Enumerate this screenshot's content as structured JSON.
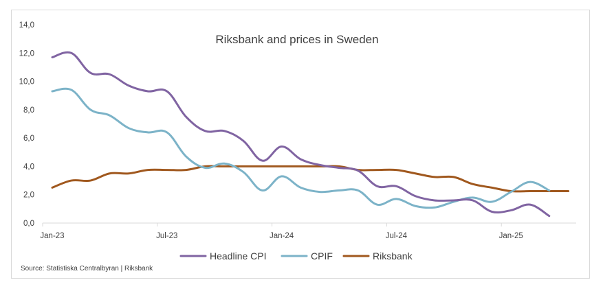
{
  "chart_data": {
    "type": "line",
    "title": "Riksbank and prices in Sweden",
    "source": "Source: Statistiska Centralbyran | Riksbank",
    "xlabel": "",
    "ylabel": "",
    "ylim": [
      0,
      14
    ],
    "yticks": [
      "0,0",
      "2,0",
      "4,0",
      "6,0",
      "8,0",
      "10,0",
      "12,0",
      "14,0"
    ],
    "xticks": [
      {
        "label": "Jan-23",
        "month": 0
      },
      {
        "label": "Jul-23",
        "month": 6
      },
      {
        "label": "Jan-24",
        "month": 12
      },
      {
        "label": "Jul-24",
        "month": 18
      },
      {
        "label": "Jan-25",
        "month": 24
      }
    ],
    "grid": false,
    "legend_position": "bottom",
    "series": [
      {
        "name": "Headline CPI",
        "color": "#8064a2",
        "x": [
          "2023-01",
          "2023-02",
          "2023-03",
          "2023-04",
          "2023-05",
          "2023-06",
          "2023-07",
          "2023-08",
          "2023-09",
          "2023-10",
          "2023-11",
          "2023-12",
          "2024-01",
          "2024-02",
          "2024-03",
          "2024-04",
          "2024-05",
          "2024-06",
          "2024-07",
          "2024-08",
          "2024-09",
          "2024-10",
          "2024-11",
          "2024-12",
          "2025-01",
          "2025-02",
          "2025-03"
        ],
        "values": [
          11.7,
          12.0,
          10.6,
          10.5,
          9.7,
          9.3,
          9.3,
          7.5,
          6.5,
          6.5,
          5.8,
          4.4,
          5.4,
          4.5,
          4.1,
          3.9,
          3.7,
          2.6,
          2.6,
          1.9,
          1.6,
          1.6,
          1.6,
          0.8,
          0.9,
          1.3,
          0.5
        ]
      },
      {
        "name": "CPIF",
        "color": "#7cb3c8",
        "x": [
          "2023-01",
          "2023-02",
          "2023-03",
          "2023-04",
          "2023-05",
          "2023-06",
          "2023-07",
          "2023-08",
          "2023-09",
          "2023-10",
          "2023-11",
          "2023-12",
          "2024-01",
          "2024-02",
          "2024-03",
          "2024-04",
          "2024-05",
          "2024-06",
          "2024-07",
          "2024-08",
          "2024-09",
          "2024-10",
          "2024-11",
          "2024-12",
          "2025-01",
          "2025-02",
          "2025-03"
        ],
        "values": [
          9.3,
          9.4,
          8.0,
          7.6,
          6.7,
          6.4,
          6.4,
          4.7,
          3.9,
          4.2,
          3.6,
          2.3,
          3.3,
          2.5,
          2.2,
          2.3,
          2.3,
          1.3,
          1.7,
          1.2,
          1.1,
          1.5,
          1.8,
          1.5,
          2.2,
          2.9,
          2.3
        ]
      },
      {
        "name": "Riksbank",
        "color": "#a0581e",
        "x": [
          "2023-01",
          "2023-02",
          "2023-03",
          "2023-04",
          "2023-05",
          "2023-06",
          "2023-07",
          "2023-08",
          "2023-09",
          "2023-10",
          "2023-11",
          "2023-12",
          "2024-01",
          "2024-02",
          "2024-03",
          "2024-04",
          "2024-05",
          "2024-06",
          "2024-07",
          "2024-08",
          "2024-09",
          "2024-10",
          "2024-11",
          "2024-12",
          "2025-01",
          "2025-02",
          "2025-03",
          "2025-04"
        ],
        "values": [
          2.5,
          3.0,
          3.0,
          3.5,
          3.5,
          3.75,
          3.75,
          3.75,
          4.0,
          4.0,
          4.0,
          4.0,
          4.0,
          4.0,
          4.0,
          4.0,
          3.75,
          3.75,
          3.75,
          3.5,
          3.25,
          3.25,
          2.75,
          2.5,
          2.25,
          2.25,
          2.25,
          2.25
        ]
      }
    ]
  }
}
